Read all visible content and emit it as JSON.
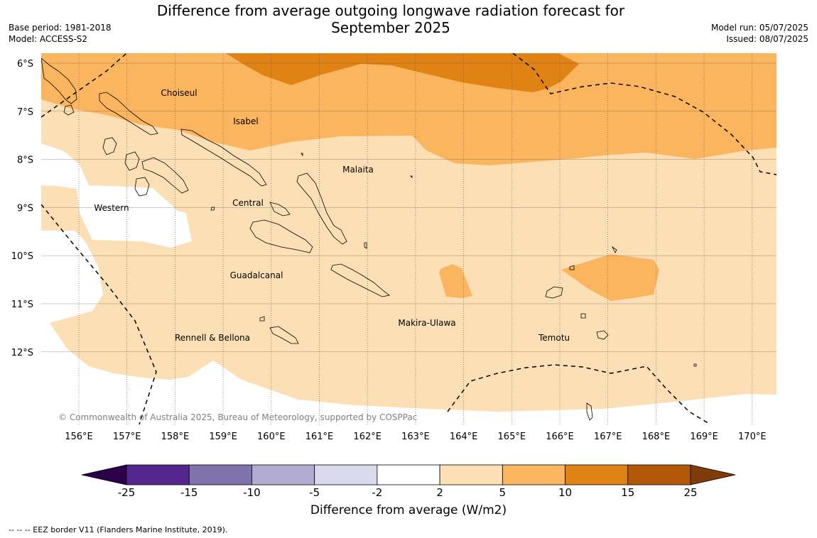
{
  "title_line1": "Difference from average outgoing longwave radiation forecast for",
  "title_line2": "September 2025",
  "meta_left": {
    "base_period": "Base period: 1981-2018",
    "model": "Model: ACCESS-S2"
  },
  "meta_right": {
    "model_run": "Model run: 05/07/2025",
    "issued": "Issued: 08/07/2025"
  },
  "copyright": "© Commonwealth of Australia 2025, Bureau of Meteorology, supported by COSPPac",
  "lat_labels": [
    "6°S",
    "7°S",
    "8°S",
    "9°S",
    "10°S",
    "11°S",
    "12°S"
  ],
  "lon_labels": [
    "156°E",
    "157°E",
    "158°E",
    "159°E",
    "160°E",
    "161°E",
    "162°E",
    "163°E",
    "164°E",
    "165°E",
    "166°E",
    "167°E",
    "168°E",
    "169°E",
    "170°E"
  ],
  "provinces": {
    "choiseul": "Choiseul",
    "isabel": "Isabel",
    "malaita": "Malaita",
    "western": "Western",
    "central": "Central",
    "guadalcanal": "Guadalcanal",
    "makira": "Makira-Ulawa",
    "rennell": "Rennell & Bellona",
    "temotu": "Temotu"
  },
  "colorbar": {
    "ticks": [
      "-25",
      "-15",
      "-10",
      "-5",
      "-2",
      "2",
      "5",
      "10",
      "15",
      "25"
    ],
    "colors": [
      "#54278f",
      "#8073ac",
      "#b2abd2",
      "#d8daeb",
      "#ffffff",
      "#fddfb5",
      "#fbb55e",
      "#e08214",
      "#b35806"
    ],
    "under_color": "#2d004b",
    "over_color": "#7f3b08",
    "label": "Difference from average (W/m2)"
  },
  "eez_legend": "--  --  -- EEZ border V11 (Flanders Marine Institute, 2019)."
}
